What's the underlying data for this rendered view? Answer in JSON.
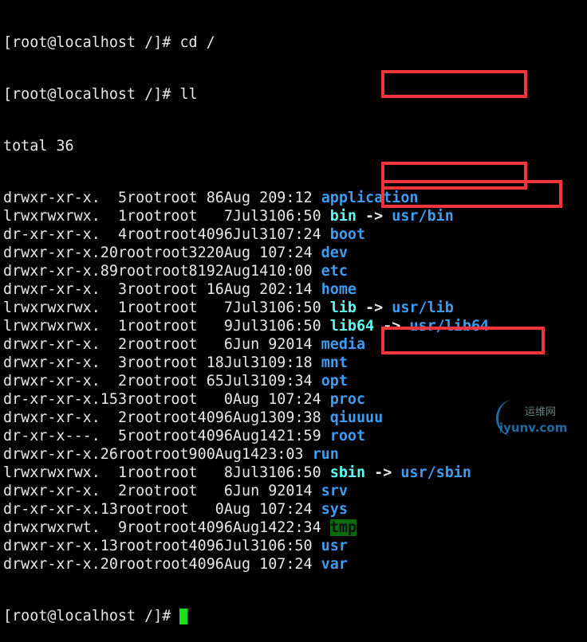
{
  "commands": [
    {
      "prompt": "[root@localhost /]#",
      "command": "cd /"
    },
    {
      "prompt": "[root@localhost /]#",
      "command": "ll"
    }
  ],
  "total": "total 36",
  "rows": [
    {
      "perms": "drwxr-xr-x.",
      "links": "5",
      "owner": "root",
      "group": "root",
      "size": "86",
      "month": "Aug",
      "day": "2",
      "time": "09:12",
      "name": "application",
      "type": "dir"
    },
    {
      "perms": "lrwxrwxrwx.",
      "links": "1",
      "owner": "root",
      "group": "root",
      "size": "7",
      "month": "Jul",
      "day": "31",
      "time": "06:50",
      "name": "bin",
      "target": "usr/bin",
      "type": "link",
      "highlighted": true
    },
    {
      "perms": "dr-xr-xr-x.",
      "links": "4",
      "owner": "root",
      "group": "root",
      "size": "4096",
      "month": "Jul",
      "day": "31",
      "time": "07:24",
      "name": "boot",
      "type": "dir"
    },
    {
      "perms": "drwxr-xr-x.",
      "links": "20",
      "owner": "root",
      "group": "root",
      "size": "3220",
      "month": "Aug",
      "day": "1",
      "time": "07:24",
      "name": "dev",
      "type": "dir"
    },
    {
      "perms": "drwxr-xr-x.",
      "links": "89",
      "owner": "root",
      "group": "root",
      "size": "8192",
      "month": "Aug",
      "day": "14",
      "time": "10:00",
      "name": "etc",
      "type": "dir"
    },
    {
      "perms": "drwxr-xr-x.",
      "links": "3",
      "owner": "root",
      "group": "root",
      "size": "16",
      "month": "Aug",
      "day": "2",
      "time": "02:14",
      "name": "home",
      "type": "dir"
    },
    {
      "perms": "lrwxrwxrwx.",
      "links": "1",
      "owner": "root",
      "group": "root",
      "size": "7",
      "month": "Jul",
      "day": "31",
      "time": "06:50",
      "name": "lib",
      "target": "usr/lib",
      "type": "link",
      "highlighted": true
    },
    {
      "perms": "lrwxrwxrwx.",
      "links": "1",
      "owner": "root",
      "group": "root",
      "size": "9",
      "month": "Jul",
      "day": "31",
      "time": "06:50",
      "name": "lib64",
      "target": "usr/lib64",
      "type": "link",
      "highlighted": true
    },
    {
      "perms": "drwxr-xr-x.",
      "links": "2",
      "owner": "root",
      "group": "root",
      "size": "6",
      "month": "Jun",
      "day": "9",
      "time": "2014",
      "name": "media",
      "type": "dir"
    },
    {
      "perms": "drwxr-xr-x.",
      "links": "3",
      "owner": "root",
      "group": "root",
      "size": "18",
      "month": "Jul",
      "day": "31",
      "time": "09:18",
      "name": "mnt",
      "type": "dir"
    },
    {
      "perms": "drwxr-xr-x.",
      "links": "2",
      "owner": "root",
      "group": "root",
      "size": "65",
      "month": "Jul",
      "day": "31",
      "time": "09:34",
      "name": "opt",
      "type": "dir"
    },
    {
      "perms": "dr-xr-xr-x.",
      "links": "153",
      "owner": "root",
      "group": "root",
      "size": "0",
      "month": "Aug",
      "day": "1",
      "time": "07:24",
      "name": "proc",
      "type": "dir"
    },
    {
      "perms": "drwxr-xr-x.",
      "links": "2",
      "owner": "root",
      "group": "root",
      "size": "4096",
      "month": "Aug",
      "day": "13",
      "time": "09:38",
      "name": "qiuuuu",
      "type": "dir"
    },
    {
      "perms": "dr-xr-x---.",
      "links": "5",
      "owner": "root",
      "group": "root",
      "size": "4096",
      "month": "Aug",
      "day": "14",
      "time": "21:59",
      "name": "root",
      "type": "dir"
    },
    {
      "perms": "drwxr-xr-x.",
      "links": "26",
      "owner": "root",
      "group": "root",
      "size": "900",
      "month": "Aug",
      "day": "14",
      "time": "23:03",
      "name": "run",
      "type": "dir"
    },
    {
      "perms": "lrwxrwxrwx.",
      "links": "1",
      "owner": "root",
      "group": "root",
      "size": "8",
      "month": "Jul",
      "day": "31",
      "time": "06:50",
      "name": "sbin",
      "target": "usr/sbin",
      "type": "link",
      "highlighted": true
    },
    {
      "perms": "drwxr-xr-x.",
      "links": "2",
      "owner": "root",
      "group": "root",
      "size": "6",
      "month": "Jun",
      "day": "9",
      "time": "2014",
      "name": "srv",
      "type": "dir"
    },
    {
      "perms": "dr-xr-xr-x.",
      "links": "13",
      "owner": "root",
      "group": "root",
      "size": "0",
      "month": "Aug",
      "day": "1",
      "time": "07:24",
      "name": "sys",
      "type": "dir"
    },
    {
      "perms": "drwxrwxrwt.",
      "links": "9",
      "owner": "root",
      "group": "root",
      "size": "4096",
      "month": "Aug",
      "day": "14",
      "time": "22:34",
      "name": "tmp",
      "type": "sticky"
    },
    {
      "perms": "drwxr-xr-x.",
      "links": "13",
      "owner": "root",
      "group": "root",
      "size": "4096",
      "month": "Jul",
      "day": "31",
      "time": "06:50",
      "name": "usr",
      "type": "dir"
    },
    {
      "perms": "drwxr-xr-x.",
      "links": "20",
      "owner": "root",
      "group": "root",
      "size": "4096",
      "month": "Aug",
      "day": "1",
      "time": "07:24",
      "name": "var",
      "type": "dir"
    }
  ],
  "arrow": "->",
  "final_prompt": "[root@localhost /]#",
  "colors": {
    "background": "#000000",
    "text": "#e8e8e8",
    "directory": "#3d9df2",
    "symlink": "#5ffff0",
    "sticky_bg": "#0b6a0b",
    "highlight_box": "#f0363a",
    "cursor": "#19e019"
  },
  "watermark": {
    "line1": "运维网",
    "line2": "iyunv.com"
  }
}
